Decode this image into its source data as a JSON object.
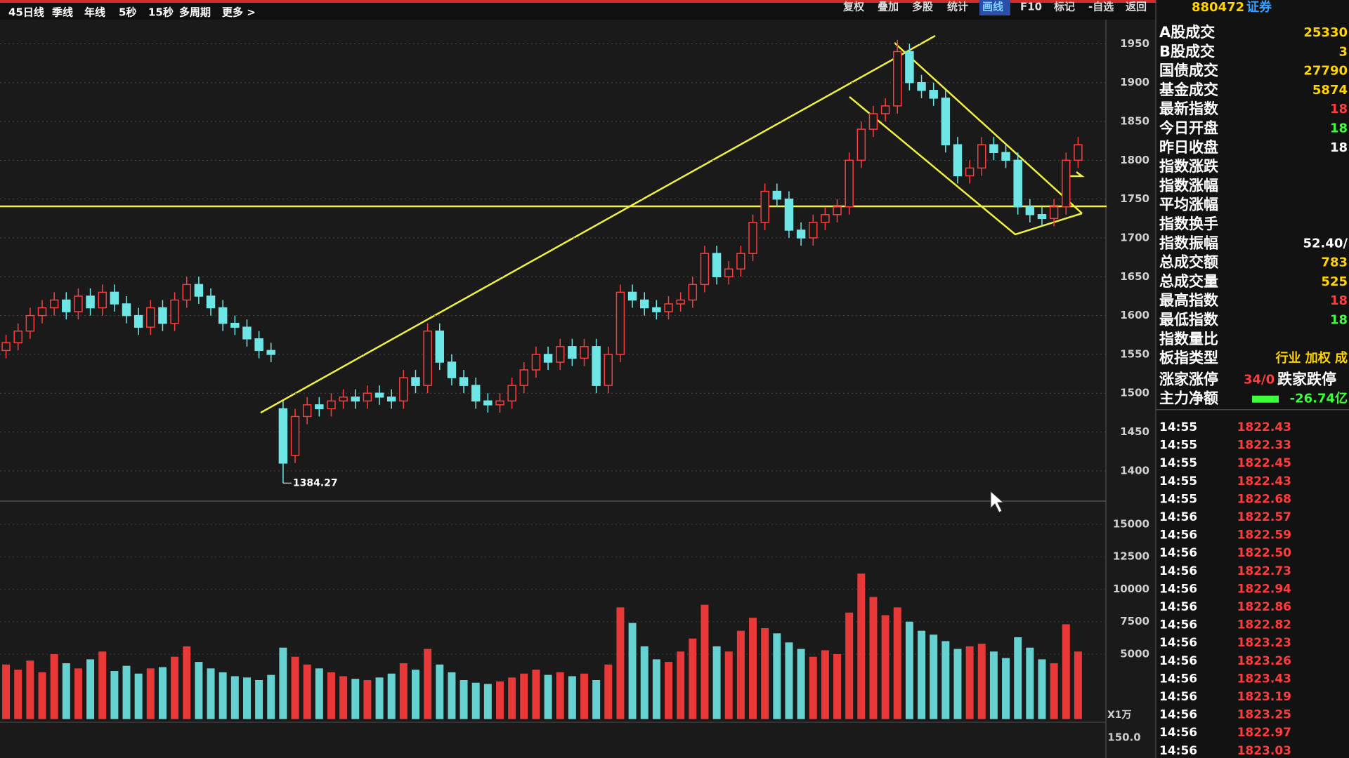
{
  "toolbar": {
    "left": [
      "45日线",
      "季线",
      "年线",
      "5秒",
      "15秒",
      "多周期",
      "更多 >"
    ],
    "right": [
      "复权",
      "叠加",
      "多股",
      "统计",
      "画线",
      "F10",
      "标记",
      "-自选",
      "返回"
    ],
    "active": "画线"
  },
  "chart_data": [
    {
      "type": "candlestick",
      "up_color": "#ff3c3c",
      "down_color": "#6fe6e6",
      "ylim": [
        1361,
        1982
      ],
      "yticks": [
        1400,
        1450,
        1500,
        1550,
        1600,
        1650,
        1700,
        1750,
        1800,
        1850,
        1900,
        1950
      ],
      "grid": true,
      "low_label": "1384.27",
      "open": [
        1555,
        1565,
        1580,
        1600,
        1610,
        1620,
        1605,
        1625,
        1610,
        1630,
        1615,
        1600,
        1585,
        1610,
        1590,
        1620,
        1640,
        1625,
        1610,
        1590,
        1585,
        1570,
        1555,
        1480,
        1420,
        1470,
        1485,
        1480,
        1490,
        1495,
        1490,
        1500,
        1495,
        1490,
        1520,
        1510,
        1580,
        1540,
        1520,
        1510,
        1490,
        1485,
        1490,
        1510,
        1530,
        1550,
        1540,
        1560,
        1545,
        1560,
        1510,
        1550,
        1630,
        1620,
        1610,
        1605,
        1615,
        1620,
        1640,
        1680,
        1650,
        1660,
        1680,
        1720,
        1760,
        1750,
        1710,
        1700,
        1720,
        1730,
        1740,
        1800,
        1840,
        1860,
        1870,
        1940,
        1900,
        1890,
        1880,
        1820,
        1780,
        1790,
        1820,
        1810,
        1800,
        1740,
        1730,
        1725,
        1740,
        1800
      ],
      "high": [
        1575,
        1590,
        1610,
        1620,
        1630,
        1630,
        1635,
        1635,
        1640,
        1640,
        1625,
        1610,
        1620,
        1620,
        1630,
        1650,
        1650,
        1635,
        1620,
        1600,
        1595,
        1580,
        1565,
        1490,
        1480,
        1495,
        1495,
        1500,
        1505,
        1505,
        1510,
        1510,
        1505,
        1530,
        1530,
        1590,
        1590,
        1550,
        1530,
        1520,
        1500,
        1500,
        1520,
        1540,
        1560,
        1560,
        1570,
        1570,
        1570,
        1570,
        1560,
        1640,
        1640,
        1630,
        1620,
        1625,
        1630,
        1650,
        1690,
        1690,
        1670,
        1690,
        1730,
        1770,
        1770,
        1760,
        1720,
        1730,
        1740,
        1750,
        1810,
        1850,
        1870,
        1880,
        1955,
        1950,
        1910,
        1900,
        1890,
        1830,
        1800,
        1830,
        1830,
        1820,
        1810,
        1750,
        1740,
        1750,
        1810,
        1830
      ],
      "low": [
        1545,
        1555,
        1570,
        1590,
        1600,
        1595,
        1595,
        1600,
        1600,
        1605,
        1590,
        1575,
        1575,
        1580,
        1580,
        1610,
        1615,
        1600,
        1580,
        1575,
        1560,
        1545,
        1540,
        1384.27,
        1410,
        1460,
        1470,
        1470,
        1480,
        1480,
        1480,
        1485,
        1480,
        1480,
        1500,
        1500,
        1530,
        1510,
        1500,
        1480,
        1475,
        1475,
        1480,
        1500,
        1520,
        1530,
        1530,
        1535,
        1535,
        1500,
        1500,
        1540,
        1610,
        1600,
        1595,
        1595,
        1605,
        1610,
        1630,
        1640,
        1640,
        1650,
        1670,
        1710,
        1740,
        1700,
        1690,
        1690,
        1710,
        1720,
        1730,
        1790,
        1830,
        1850,
        1860,
        1890,
        1880,
        1870,
        1810,
        1770,
        1770,
        1780,
        1800,
        1790,
        1730,
        1720,
        1715,
        1715,
        1730,
        1790
      ],
      "close": [
        1565,
        1580,
        1600,
        1610,
        1620,
        1605,
        1625,
        1610,
        1630,
        1615,
        1600,
        1585,
        1610,
        1590,
        1620,
        1640,
        1625,
        1610,
        1590,
        1585,
        1570,
        1555,
        1550,
        1410,
        1470,
        1485,
        1480,
        1490,
        1495,
        1490,
        1500,
        1495,
        1490,
        1520,
        1510,
        1580,
        1540,
        1520,
        1510,
        1490,
        1485,
        1490,
        1510,
        1530,
        1550,
        1540,
        1560,
        1545,
        1560,
        1510,
        1550,
        1630,
        1620,
        1610,
        1605,
        1615,
        1620,
        1640,
        1680,
        1650,
        1660,
        1680,
        1720,
        1760,
        1750,
        1710,
        1700,
        1720,
        1730,
        1740,
        1800,
        1840,
        1860,
        1870,
        1940,
        1900,
        1890,
        1880,
        1820,
        1780,
        1790,
        1820,
        1810,
        1800,
        1740,
        1730,
        1725,
        1740,
        1800,
        1820
      ]
    },
    {
      "type": "bar",
      "unit_label": "X1万",
      "ylim": [
        0,
        16350
      ],
      "yticks": [
        5000,
        7500,
        10000,
        12500,
        15000
      ],
      "grid": true,
      "values": [
        4200,
        3800,
        4500,
        3600,
        5000,
        4300,
        3900,
        4600,
        5200,
        3700,
        4100,
        3500,
        3900,
        4000,
        4800,
        5600,
        4400,
        3900,
        3600,
        3300,
        3200,
        3000,
        3400,
        5500,
        4800,
        4200,
        3900,
        3600,
        3300,
        3100,
        3000,
        3200,
        3500,
        4300,
        3800,
        5400,
        4200,
        3600,
        3000,
        2800,
        2700,
        2900,
        3200,
        3500,
        3800,
        3400,
        3600,
        3300,
        3500,
        3000,
        4200,
        8600,
        7400,
        5600,
        4600,
        4400,
        5200,
        6200,
        8800,
        5600,
        5200,
        6800,
        7800,
        7000,
        6600,
        5900,
        5400,
        4800,
        5300,
        5000,
        8200,
        11200,
        9400,
        8000,
        8600,
        7500,
        6800,
        6500,
        6000,
        5400,
        5600,
        5800,
        5200,
        4700,
        6300,
        5500,
        4600,
        4300,
        7300,
        5200
      ]
    }
  ],
  "indicator_panel": {
    "axis_label": "150.0"
  },
  "side_panel": {
    "code": "880472",
    "name": "证券",
    "rows": [
      {
        "label": "A股成交",
        "value": "25330",
        "color": "#ffd400"
      },
      {
        "label": "B股成交",
        "value": "3",
        "color": "#ffd400"
      },
      {
        "label": "国债成交",
        "value": "27790",
        "color": "#ffd400"
      },
      {
        "label": "基金成交",
        "value": "5874",
        "color": "#ffd400"
      },
      {
        "label": "最新指数",
        "value": "18",
        "color": "#ff3c3c"
      },
      {
        "label": "今日开盘",
        "value": "18",
        "color": "#3cff3c"
      },
      {
        "label": "昨日收盘",
        "value": "18",
        "color": "#ffffff"
      },
      {
        "label": "指数涨跌"
      },
      {
        "label": "指数涨幅"
      },
      {
        "label": "平均涨幅"
      },
      {
        "label": "指数换手"
      },
      {
        "label": "指数振幅",
        "value": "52.40/",
        "color": "#ffffff"
      },
      {
        "label": "总成交额",
        "value": "783",
        "color": "#ffd400"
      },
      {
        "label": "总成交量",
        "value": "525",
        "color": "#ffd400"
      },
      {
        "label": "最高指数",
        "value": "18",
        "color": "#ff3c3c"
      },
      {
        "label": "最低指数",
        "value": "18",
        "color": "#3cff3c"
      },
      {
        "label": "指数量比"
      },
      {
        "label": "板指类型",
        "value": "行业 加权 成",
        "color": "#ffd400"
      }
    ],
    "breadth": {
      "label": "涨家涨停",
      "value": "34/0",
      "label2": "跌家跌停"
    },
    "net_flow": {
      "label": "主力净额",
      "value": "-26.74亿"
    },
    "ticks": [
      {
        "time": "14:55",
        "price": "1822.43"
      },
      {
        "time": "14:55",
        "price": "1822.33"
      },
      {
        "time": "14:55",
        "price": "1822.45"
      },
      {
        "time": "14:55",
        "price": "1822.43"
      },
      {
        "time": "14:55",
        "price": "1822.68"
      },
      {
        "time": "14:56",
        "price": "1822.57"
      },
      {
        "time": "14:56",
        "price": "1822.59"
      },
      {
        "time": "14:56",
        "price": "1822.50"
      },
      {
        "time": "14:56",
        "price": "1822.73"
      },
      {
        "time": "14:56",
        "price": "1822.94"
      },
      {
        "time": "14:56",
        "price": "1822.86"
      },
      {
        "time": "14:56",
        "price": "1822.82"
      },
      {
        "time": "14:56",
        "price": "1823.23"
      },
      {
        "time": "14:56",
        "price": "1823.26"
      },
      {
        "time": "14:56",
        "price": "1823.43"
      },
      {
        "time": "14:56",
        "price": "1823.19"
      },
      {
        "time": "14:56",
        "price": "1823.25"
      },
      {
        "time": "14:56",
        "price": "1822.97"
      },
      {
        "time": "14:56",
        "price": "1823.03"
      }
    ]
  }
}
